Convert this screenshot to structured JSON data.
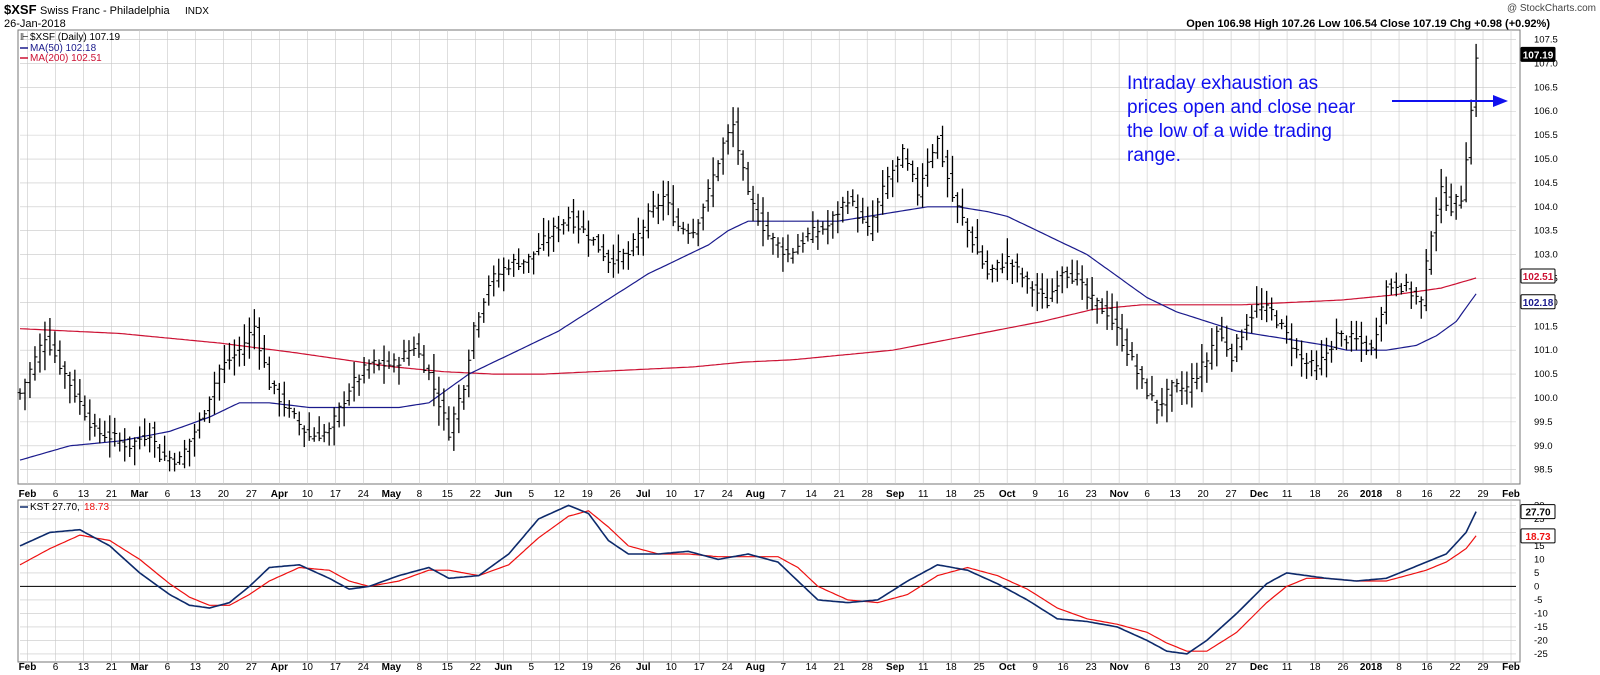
{
  "header": {
    "symbol": "$XSF",
    "name": "Swiss Franc - Philadelphia",
    "exchange": "INDX",
    "date": "26-Jan-2018",
    "ohlc_text": "Open 106.98  High 107.26  Low 106.54  Close 107.19  Chg +0.98 (+0.92%)",
    "watermark": "@ StockCharts.com"
  },
  "price_panel": {
    "legend_main": "$XSF (Daily) 107.19",
    "legend_ma50": "MA(50) 102.18",
    "legend_ma200": "MA(200) 102.51",
    "annotation": [
      "Intraday exhaustion as",
      "prices open and close near",
      "the low of a wide trading",
      "range."
    ]
  },
  "kst_panel": {
    "legend_label": "KST",
    "legend_kst_value": "27.70,",
    "legend_signal_value": "18.73"
  },
  "colors": {
    "price_bars": "#000000",
    "ma50": "#1a1a8c",
    "ma200": "#cc1133",
    "kst": "#0d2a6b",
    "kst_signal": "#e11",
    "annotation": "#1010ee",
    "grid": "#c8c8c8",
    "last_price_box": "#000000",
    "ma50_box": "#1a1a8c",
    "ma200_box": "#cc1133"
  },
  "chart_data": [
    {
      "type": "ohlc",
      "title": "$XSF Swiss Franc - Philadelphia INDX",
      "ylim": [
        98.2,
        107.7
      ],
      "y_ticks": [
        98.5,
        99.0,
        99.5,
        100.0,
        100.5,
        101.0,
        101.5,
        102.0,
        102.5,
        103.0,
        103.5,
        104.0,
        104.5,
        105.0,
        105.5,
        106.0,
        106.5,
        107.0,
        107.5
      ],
      "x_tick_labels": [
        "Feb",
        "6",
        "13",
        "21",
        "Mar",
        "6",
        "13",
        "20",
        "27",
        "Apr",
        "10",
        "17",
        "24",
        "May",
        "8",
        "15",
        "22",
        "Jun",
        "5",
        "12",
        "19",
        "26",
        "Jul",
        "10",
        "17",
        "24",
        "Aug",
        "7",
        "14",
        "21",
        "28",
        "Sep",
        "11",
        "18",
        "25",
        "Oct",
        "9",
        "16",
        "23",
        "Nov",
        "6",
        "13",
        "20",
        "27",
        "Dec",
        "11",
        "18",
        "26",
        "2018",
        "8",
        "16",
        "22",
        "29",
        "Feb"
      ],
      "last_values": {
        "close": "107.19",
        "ma200": "102.51",
        "ma50": "102.18"
      },
      "close_anchors": [
        [
          0,
          100.1
        ],
        [
          5,
          101.3
        ],
        [
          10,
          100.3
        ],
        [
          15,
          99.3
        ],
        [
          18,
          99.2
        ],
        [
          22,
          99.0
        ],
        [
          26,
          99.3
        ],
        [
          28,
          98.8
        ],
        [
          32,
          98.7
        ],
        [
          36,
          99.5
        ],
        [
          40,
          100.6
        ],
        [
          44,
          101.0
        ],
        [
          47,
          101.5
        ],
        [
          50,
          100.3
        ],
        [
          54,
          99.7
        ],
        [
          58,
          99.2
        ],
        [
          62,
          99.3
        ],
        [
          66,
          100.2
        ],
        [
          70,
          100.7
        ],
        [
          75,
          100.7
        ],
        [
          79,
          101.1
        ],
        [
          82,
          100.5
        ],
        [
          86,
          99.3
        ],
        [
          89,
          100.3
        ],
        [
          91,
          101.5
        ],
        [
          94,
          102.4
        ],
        [
          98,
          102.8
        ],
        [
          102,
          102.9
        ],
        [
          106,
          103.4
        ],
        [
          110,
          103.8
        ],
        [
          114,
          103.4
        ],
        [
          118,
          102.9
        ],
        [
          122,
          103.0
        ],
        [
          126,
          103.8
        ],
        [
          129,
          104.2
        ],
        [
          132,
          103.6
        ],
        [
          135,
          103.5
        ],
        [
          138,
          104.3
        ],
        [
          141,
          105.3
        ],
        [
          143,
          105.7
        ],
        [
          146,
          104.2
        ],
        [
          150,
          103.4
        ],
        [
          154,
          103.0
        ],
        [
          158,
          103.4
        ],
        [
          162,
          103.6
        ],
        [
          166,
          104.2
        ],
        [
          170,
          103.5
        ],
        [
          174,
          104.6
        ],
        [
          177,
          105.1
        ],
        [
          180,
          104.3
        ],
        [
          182,
          105.0
        ],
        [
          184,
          105.4
        ],
        [
          187,
          104.2
        ],
        [
          190,
          103.5
        ],
        [
          194,
          102.6
        ],
        [
          198,
          102.9
        ],
        [
          202,
          102.4
        ],
        [
          206,
          102.0
        ],
        [
          209,
          102.7
        ],
        [
          212,
          102.5
        ],
        [
          214,
          102.1
        ],
        [
          218,
          101.8
        ],
        [
          222,
          101.0
        ],
        [
          225,
          100.3
        ],
        [
          228,
          99.8
        ],
        [
          231,
          100.2
        ],
        [
          234,
          100.2
        ],
        [
          238,
          100.8
        ],
        [
          240,
          101.4
        ],
        [
          243,
          100.9
        ],
        [
          246,
          101.6
        ],
        [
          248,
          101.9
        ],
        [
          251,
          101.8
        ],
        [
          254,
          101.3
        ],
        [
          257,
          100.8
        ],
        [
          260,
          100.6
        ],
        [
          264,
          101.3
        ],
        [
          268,
          101.2
        ],
        [
          271,
          101.0
        ],
        [
          274,
          102.3
        ],
        [
          276,
          102.4
        ],
        [
          278,
          102.3
        ],
        [
          281,
          102.0
        ],
        [
          283,
          103.5
        ],
        [
          285,
          104.3
        ],
        [
          287,
          104.0
        ],
        [
          289,
          104.2
        ],
        [
          291,
          106.0
        ],
        [
          292,
          107.19
        ]
      ],
      "ma50_anchors": [
        [
          0,
          98.7
        ],
        [
          10,
          99.0
        ],
        [
          20,
          99.1
        ],
        [
          30,
          99.3
        ],
        [
          38,
          99.6
        ],
        [
          44,
          99.9
        ],
        [
          50,
          99.9
        ],
        [
          58,
          99.8
        ],
        [
          64,
          99.8
        ],
        [
          70,
          99.8
        ],
        [
          76,
          99.8
        ],
        [
          82,
          99.9
        ],
        [
          90,
          100.5
        ],
        [
          96,
          100.8
        ],
        [
          102,
          101.1
        ],
        [
          108,
          101.4
        ],
        [
          114,
          101.8
        ],
        [
          120,
          102.2
        ],
        [
          126,
          102.6
        ],
        [
          132,
          102.9
        ],
        [
          138,
          103.2
        ],
        [
          142,
          103.5
        ],
        [
          146,
          103.7
        ],
        [
          152,
          103.7
        ],
        [
          158,
          103.7
        ],
        [
          164,
          103.7
        ],
        [
          170,
          103.8
        ],
        [
          176,
          103.9
        ],
        [
          182,
          104.0
        ],
        [
          188,
          104.0
        ],
        [
          194,
          103.9
        ],
        [
          198,
          103.8
        ],
        [
          202,
          103.6
        ],
        [
          206,
          103.4
        ],
        [
          210,
          103.2
        ],
        [
          214,
          103.0
        ],
        [
          218,
          102.7
        ],
        [
          222,
          102.4
        ],
        [
          226,
          102.1
        ],
        [
          232,
          101.8
        ],
        [
          238,
          101.6
        ],
        [
          244,
          101.4
        ],
        [
          250,
          101.3
        ],
        [
          256,
          101.2
        ],
        [
          262,
          101.1
        ],
        [
          266,
          101.0
        ],
        [
          270,
          101.0
        ],
        [
          274,
          101.0
        ],
        [
          280,
          101.1
        ],
        [
          284,
          101.3
        ],
        [
          288,
          101.6
        ],
        [
          292,
          102.18
        ]
      ],
      "ma200_anchors": [
        [
          0,
          101.45
        ],
        [
          20,
          101.35
        ],
        [
          40,
          101.15
        ],
        [
          55,
          100.95
        ],
        [
          65,
          100.8
        ],
        [
          75,
          100.65
        ],
        [
          85,
          100.55
        ],
        [
          95,
          100.5
        ],
        [
          105,
          100.5
        ],
        [
          115,
          100.55
        ],
        [
          125,
          100.6
        ],
        [
          135,
          100.65
        ],
        [
          145,
          100.75
        ],
        [
          155,
          100.8
        ],
        [
          165,
          100.9
        ],
        [
          175,
          101.0
        ],
        [
          185,
          101.2
        ],
        [
          195,
          101.4
        ],
        [
          205,
          101.6
        ],
        [
          215,
          101.85
        ],
        [
          225,
          101.95
        ],
        [
          235,
          101.95
        ],
        [
          245,
          101.95
        ],
        [
          255,
          102.0
        ],
        [
          265,
          102.05
        ],
        [
          275,
          102.15
        ],
        [
          285,
          102.3
        ],
        [
          292,
          102.51
        ]
      ]
    },
    {
      "type": "line",
      "title": "KST",
      "ylim": [
        -28,
        32
      ],
      "y_ticks": [
        -25,
        -20,
        -15,
        -10,
        -5,
        0,
        5,
        10,
        15,
        20,
        25,
        30
      ],
      "last_values": {
        "kst": "27.70",
        "signal": "18.73"
      },
      "series": [
        {
          "name": "KST",
          "anchors": [
            [
              0,
              15
            ],
            [
              6,
              20
            ],
            [
              12,
              21
            ],
            [
              18,
              15
            ],
            [
              24,
              5
            ],
            [
              30,
              -3
            ],
            [
              34,
              -7
            ],
            [
              38,
              -8
            ],
            [
              42,
              -6
            ],
            [
              46,
              0
            ],
            [
              50,
              7
            ],
            [
              56,
              8
            ],
            [
              62,
              3
            ],
            [
              66,
              -1
            ],
            [
              70,
              0
            ],
            [
              76,
              4
            ],
            [
              82,
              7
            ],
            [
              86,
              3
            ],
            [
              92,
              4
            ],
            [
              98,
              12
            ],
            [
              104,
              25
            ],
            [
              110,
              30
            ],
            [
              114,
              27
            ],
            [
              118,
              17
            ],
            [
              122,
              12
            ],
            [
              128,
              12
            ],
            [
              134,
              13
            ],
            [
              140,
              10
            ],
            [
              146,
              12
            ],
            [
              152,
              9
            ],
            [
              156,
              2
            ],
            [
              160,
              -5
            ],
            [
              166,
              -6
            ],
            [
              172,
              -5
            ],
            [
              178,
              2
            ],
            [
              184,
              8
            ],
            [
              190,
              6
            ],
            [
              196,
              1
            ],
            [
              202,
              -5
            ],
            [
              208,
              -12
            ],
            [
              214,
              -13
            ],
            [
              220,
              -15
            ],
            [
              226,
              -20
            ],
            [
              230,
              -24
            ],
            [
              234,
              -25
            ],
            [
              238,
              -20
            ],
            [
              244,
              -10
            ],
            [
              250,
              1
            ],
            [
              254,
              5
            ],
            [
              258,
              4
            ],
            [
              262,
              3
            ],
            [
              268,
              2
            ],
            [
              274,
              3
            ],
            [
              278,
              6
            ],
            [
              282,
              9
            ],
            [
              286,
              12
            ],
            [
              290,
              20
            ],
            [
              292,
              27.7
            ]
          ]
        },
        {
          "name": "Signal",
          "anchors": [
            [
              0,
              8
            ],
            [
              6,
              14
            ],
            [
              12,
              19
            ],
            [
              18,
              17
            ],
            [
              24,
              10
            ],
            [
              30,
              1
            ],
            [
              34,
              -4
            ],
            [
              38,
              -7
            ],
            [
              42,
              -7
            ],
            [
              46,
              -3
            ],
            [
              50,
              2
            ],
            [
              56,
              7
            ],
            [
              62,
              6
            ],
            [
              66,
              2
            ],
            [
              70,
              0
            ],
            [
              76,
              2
            ],
            [
              82,
              6
            ],
            [
              86,
              6
            ],
            [
              92,
              4
            ],
            [
              98,
              8
            ],
            [
              104,
              18
            ],
            [
              110,
              26
            ],
            [
              114,
              28
            ],
            [
              118,
              22
            ],
            [
              122,
              15
            ],
            [
              128,
              12
            ],
            [
              134,
              12
            ],
            [
              140,
              11
            ],
            [
              146,
              11
            ],
            [
              152,
              11
            ],
            [
              156,
              7
            ],
            [
              160,
              0
            ],
            [
              166,
              -5
            ],
            [
              172,
              -6
            ],
            [
              178,
              -3
            ],
            [
              184,
              4
            ],
            [
              190,
              7
            ],
            [
              196,
              4
            ],
            [
              202,
              -1
            ],
            [
              208,
              -8
            ],
            [
              214,
              -12
            ],
            [
              220,
              -14
            ],
            [
              226,
              -17
            ],
            [
              230,
              -21
            ],
            [
              234,
              -24
            ],
            [
              238,
              -24
            ],
            [
              244,
              -17
            ],
            [
              250,
              -6
            ],
            [
              254,
              0
            ],
            [
              258,
              3
            ],
            [
              262,
              3
            ],
            [
              268,
              2
            ],
            [
              274,
              2
            ],
            [
              278,
              4
            ],
            [
              282,
              6
            ],
            [
              286,
              9
            ],
            [
              290,
              14
            ],
            [
              292,
              18.73
            ]
          ]
        }
      ]
    }
  ]
}
